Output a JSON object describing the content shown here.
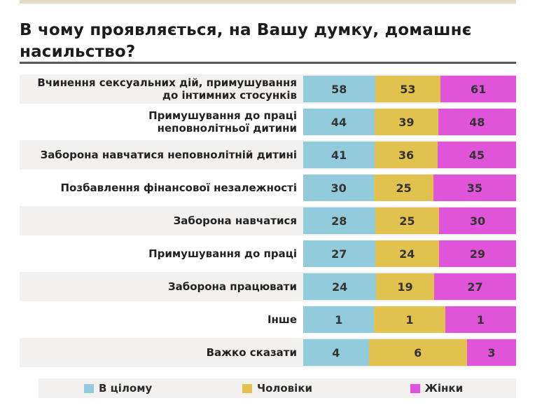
{
  "title": "В чому проявляється, на Вашу думку, домашнє насильство?",
  "chart_data": {
    "type": "bar",
    "variant": "horizontal-100pct-stacked",
    "title": "В чому проявляється, на Вашу думку, домашнє насильство?",
    "value_labels": true,
    "legend_position": "bottom",
    "grid": false,
    "categories": [
      "Вчинення сексуальних дій, примушування\nдо інтимних стосунків",
      "Примушування до праці\nнеповнолітньої дитини",
      "Заборона навчатися неповнолітній дитині",
      "Позбавлення фінансової незалежності",
      "Заборона навчатися",
      "Примушування до праці",
      "Заборона працювати",
      "Інше",
      "Важко сказати"
    ],
    "series": [
      {
        "key": "overall",
        "name": "В цілому",
        "color": "#92cbdc",
        "values": [
          58,
          44,
          41,
          30,
          28,
          27,
          24,
          1,
          4
        ]
      },
      {
        "key": "men",
        "name": "Чоловіки",
        "color": "#e2c24e",
        "values": [
          53,
          39,
          36,
          25,
          25,
          24,
          19,
          1,
          6
        ]
      },
      {
        "key": "women",
        "name": "Жінки",
        "color": "#e054da",
        "values": [
          61,
          48,
          45,
          35,
          30,
          29,
          27,
          1,
          3
        ]
      }
    ]
  },
  "legend": {
    "items": [
      {
        "label": "В цілому",
        "color": "#92cbdc"
      },
      {
        "label": "Чоловіки",
        "color": "#e2c24e"
      },
      {
        "label": "Жінки",
        "color": "#e054da"
      }
    ]
  },
  "colors": {
    "row_alt_background": "#f2f1ef",
    "top_strip": "#e4ddc6",
    "divider": "#4a4a4a",
    "value_text": "#333333",
    "label_text": "#222222"
  }
}
